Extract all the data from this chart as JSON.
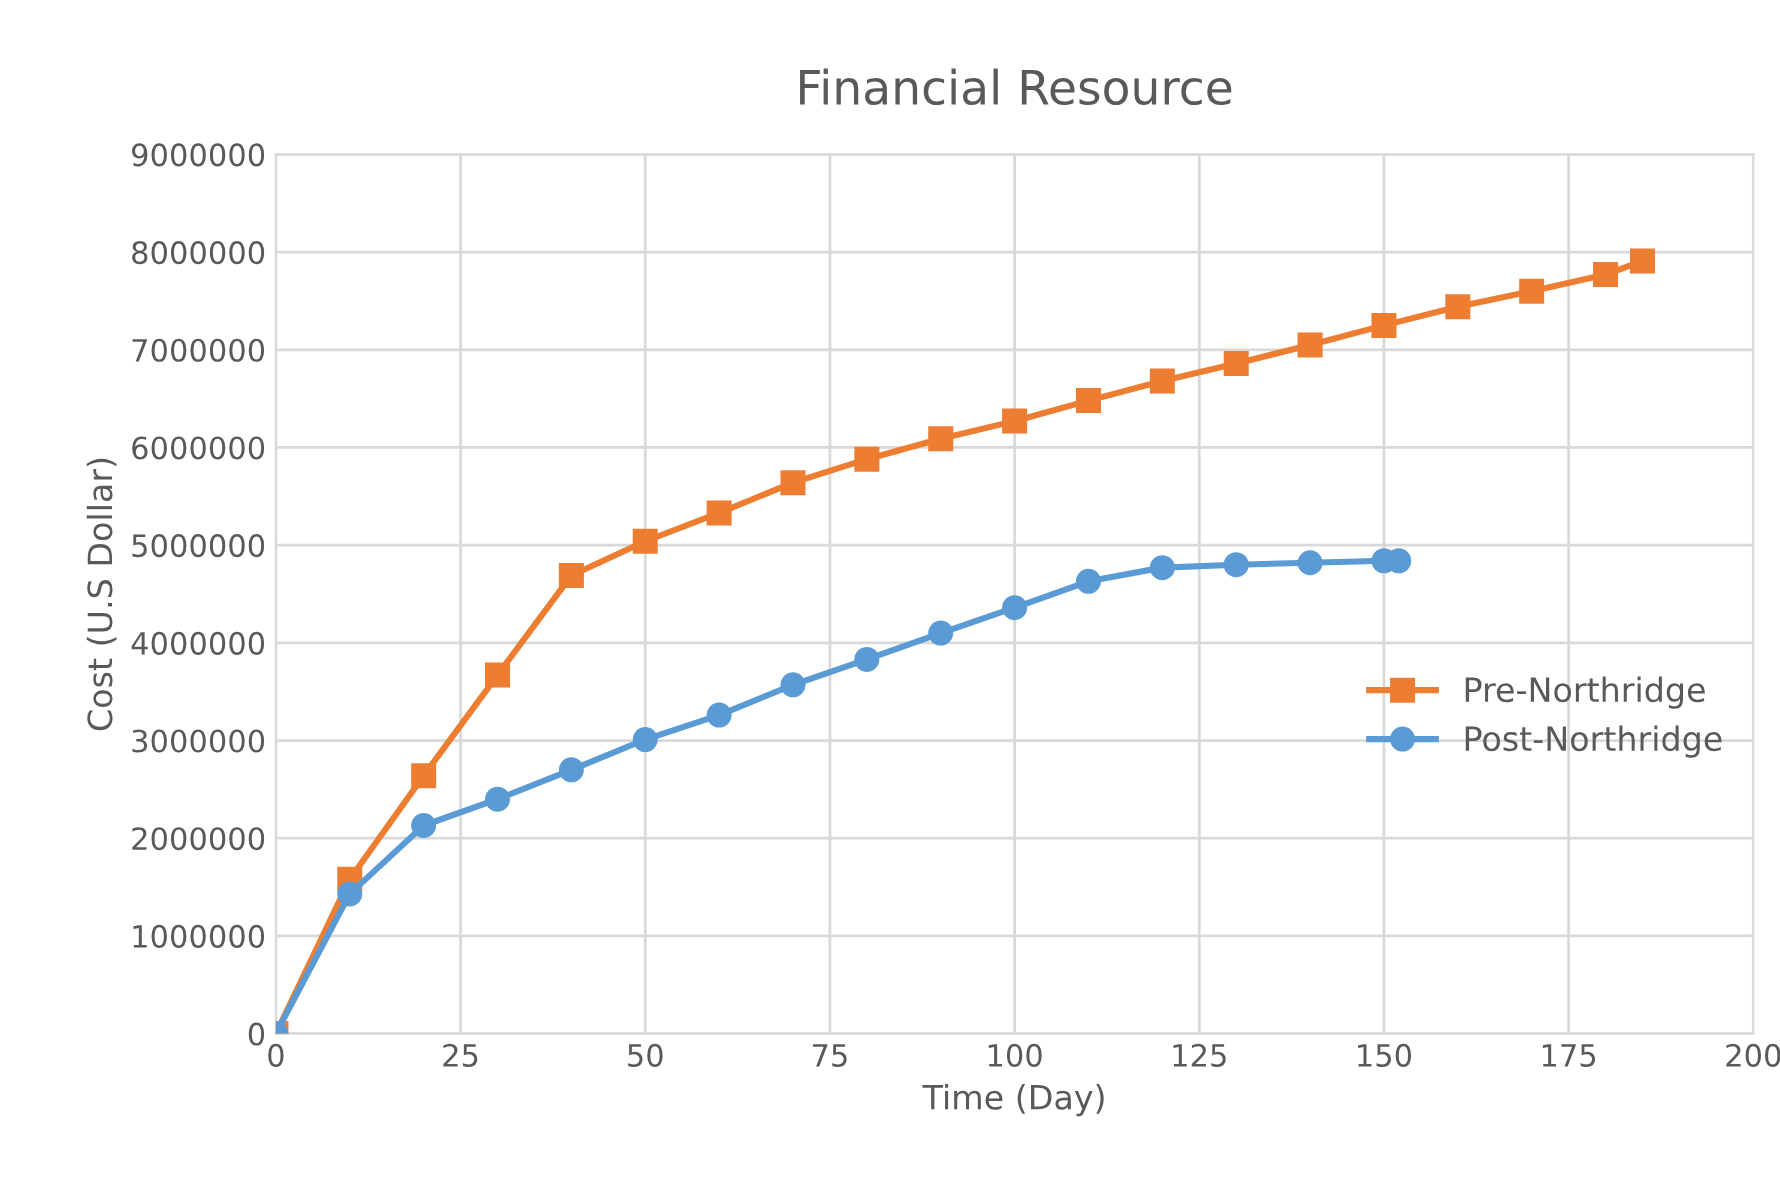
{
  "chart_data": {
    "type": "line",
    "title": "Financial Resource",
    "xlabel": "Time (Day)",
    "ylabel": "Cost (U.S Dollar)",
    "xlim": [
      0,
      200
    ],
    "xticks": [
      0,
      25,
      50,
      75,
      100,
      125,
      150,
      175,
      200
    ],
    "ylim": [
      0,
      9000000
    ],
    "yticks": [
      0,
      1000000,
      2000000,
      3000000,
      4000000,
      5000000,
      6000000,
      7000000,
      8000000,
      9000000
    ],
    "grid": true,
    "legend": "right",
    "series": [
      {
        "name": "Pre-Northridge",
        "color": "#ed7d31",
        "marker": "square",
        "x": [
          0,
          10,
          20,
          30,
          40,
          50,
          60,
          70,
          80,
          90,
          100,
          110,
          120,
          130,
          140,
          150,
          160,
          170,
          180,
          185
        ],
        "values": [
          0,
          1580000,
          2640000,
          3670000,
          4690000,
          5040000,
          5330000,
          5640000,
          5880000,
          6090000,
          6270000,
          6480000,
          6680000,
          6860000,
          7050000,
          7250000,
          7440000,
          7600000,
          7770000,
          7910000
        ]
      },
      {
        "name": "Post-Northridge",
        "color": "#5b9bd5",
        "marker": "circle",
        "x": [
          0,
          10,
          20,
          30,
          40,
          50,
          60,
          70,
          80,
          90,
          100,
          110,
          120,
          130,
          140,
          150,
          152
        ],
        "values": [
          0,
          1430000,
          2130000,
          2400000,
          2700000,
          3010000,
          3260000,
          3570000,
          3830000,
          4100000,
          4360000,
          4630000,
          4770000,
          4800000,
          4820000,
          4840000,
          4840000
        ]
      }
    ]
  }
}
